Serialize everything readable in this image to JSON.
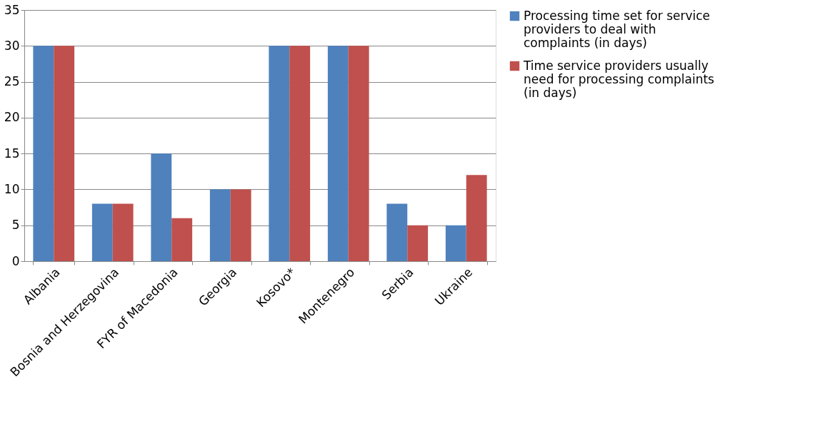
{
  "chart_data": {
    "type": "bar",
    "categories": [
      "Albania",
      "Bosnia and Herzegovina",
      "FYR of Macedonia",
      "Georgia",
      "Kosovo*",
      "Montenegro",
      "Serbia",
      "Ukraine"
    ],
    "series": [
      {
        "name": "Processing time set for service providers to deal with complaints (in days)",
        "color": "#4f81bd",
        "values": [
          30,
          8,
          15,
          10,
          30,
          30,
          8,
          5
        ]
      },
      {
        "name": "Time service providers usually need for processing complaints (in days)",
        "color": "#c0504d",
        "values": [
          30,
          8,
          6,
          10,
          30,
          30,
          5,
          12
        ]
      }
    ],
    "ylim": [
      0,
      35
    ],
    "yticks": [
      0,
      5,
      10,
      15,
      20,
      25,
      30,
      35
    ],
    "grid": "y",
    "legend": "right"
  }
}
